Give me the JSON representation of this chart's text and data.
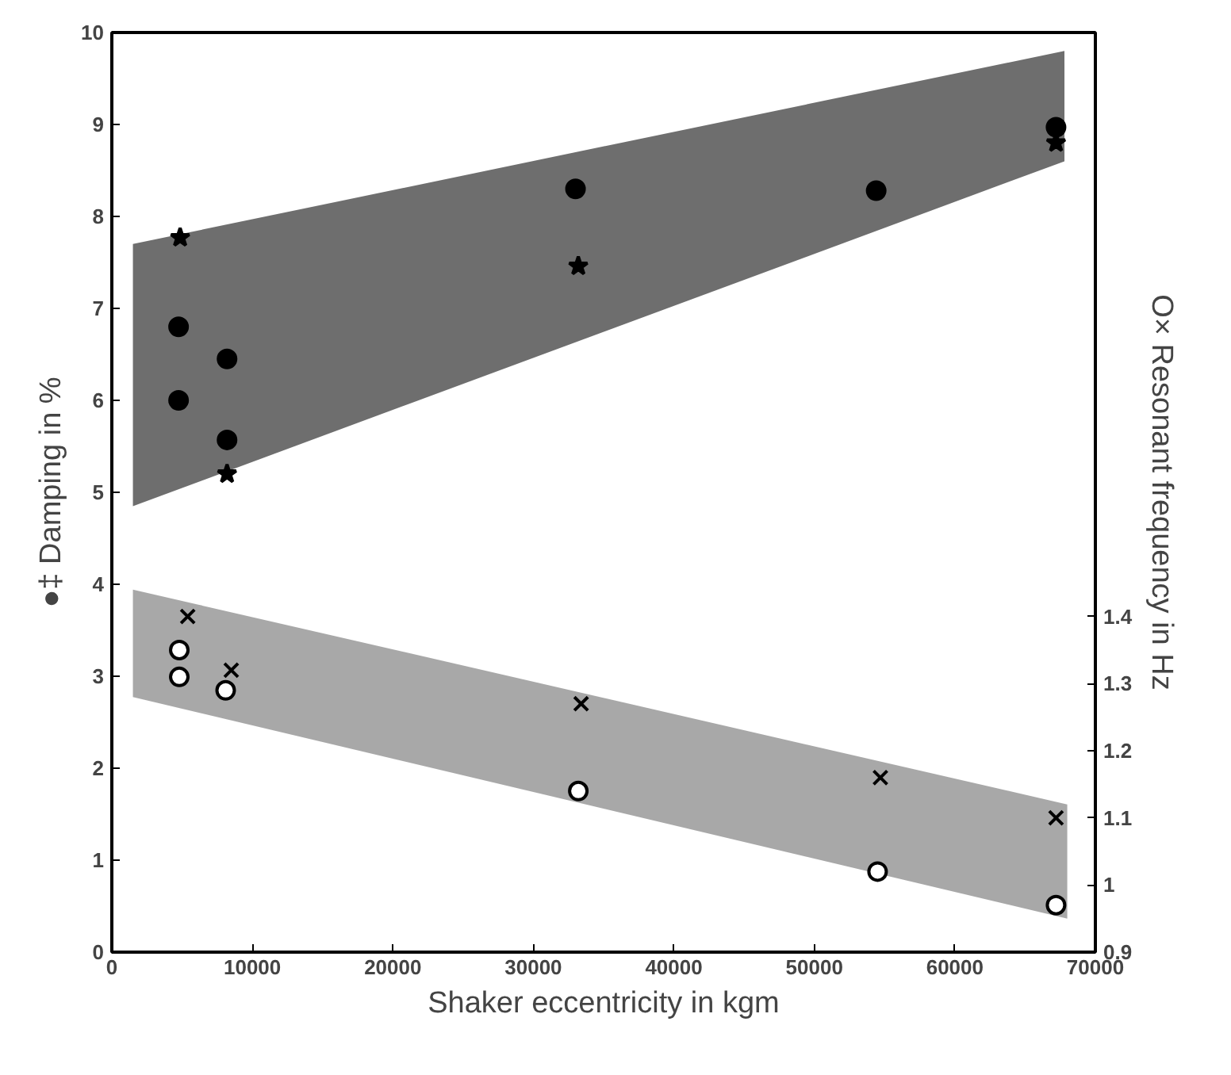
{
  "chart_data": {
    "type": "scatter",
    "xlabel": "Shaker eccentricity in kgm",
    "ylabel": "●‡ Damping in %",
    "y2label": "O× Resonant frequency in Hz",
    "xlim": [
      0,
      70000
    ],
    "xticks": [
      0,
      10000,
      20000,
      30000,
      40000,
      50000,
      60000,
      70000
    ],
    "ylim": [
      0,
      10
    ],
    "yticks": [
      0,
      1,
      2,
      3,
      4,
      5,
      6,
      7,
      8,
      9,
      10
    ],
    "y2lim": [
      0.9,
      2.27
    ],
    "y2ticks": [
      0.9,
      1,
      1.1,
      1.2,
      1.3,
      1.4
    ],
    "grid": false,
    "series": [
      {
        "type": "line",
        "color": "#555555",
        "x": [
          1500,
          67800
        ],
        "values": [
          null,
          null
        ],
        "upper": [
          7.7,
          9.8
        ],
        "lower": [
          4.85,
          8.6
        ]
      },
      {
        "type": "line",
        "color": "#999999",
        "axis": "y2",
        "x": [
          1500,
          68000
        ],
        "values": [
          null,
          null
        ],
        "upper": [
          1.44,
          1.12
        ],
        "lower": [
          1.28,
          0.95
        ]
      },
      {
        "marker": "circle",
        "color": "#000000",
        "x": [
          4750,
          4750,
          8200,
          8200,
          33000,
          54400,
          67200
        ],
        "values": [
          6.8,
          6.0,
          6.45,
          5.57,
          8.3,
          8.28,
          8.97
        ]
      },
      {
        "marker": "star",
        "color": "#000000",
        "x": [
          4860,
          8200,
          33200,
          67200
        ],
        "values": [
          7.77,
          5.2,
          7.46,
          8.8
        ]
      },
      {
        "marker": "circle",
        "axis": "y2",
        "color": "#000000",
        "x": [
          4800,
          4800,
          8100,
          33200,
          54500,
          67200
        ],
        "values": [
          1.35,
          1.31,
          1.29,
          1.14,
          1.02,
          0.97
        ]
      },
      {
        "marker": "cross",
        "axis": "y2",
        "color": "#000000",
        "x": [
          5400,
          8500,
          33400,
          54700,
          67200
        ],
        "values": [
          1.4,
          1.32,
          1.27,
          1.16,
          1.1
        ]
      }
    ]
  }
}
